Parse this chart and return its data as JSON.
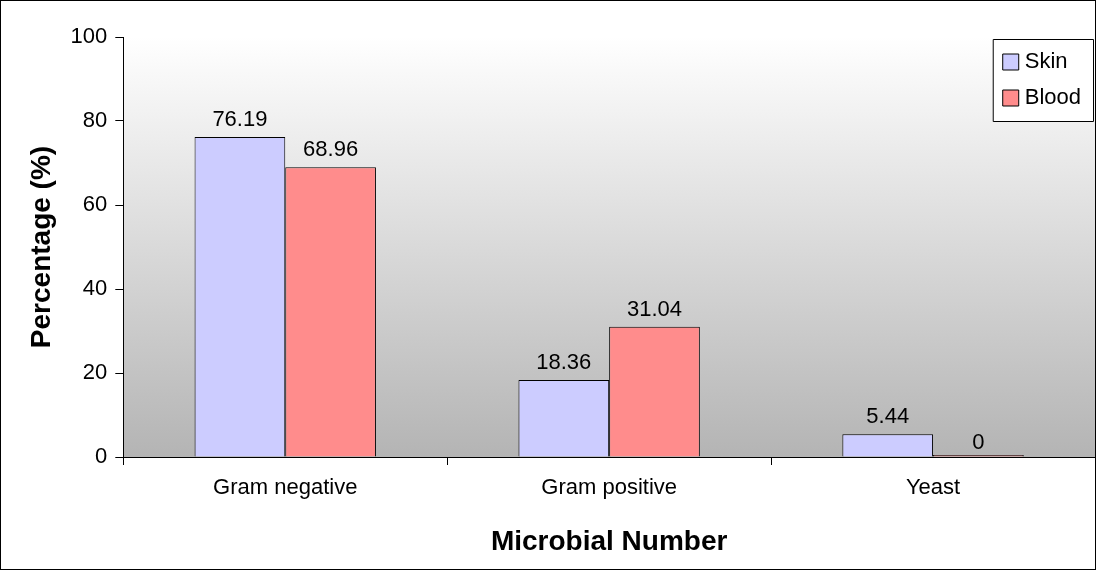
{
  "chart_data": {
    "type": "bar",
    "xlabel": "Microbial Number",
    "ylabel": "Percentage (%)",
    "categories": [
      "Gram negative",
      "Gram positive",
      "Yeast"
    ],
    "series": [
      {
        "name": "Skin",
        "color": "#ccccff",
        "values": [
          76.19,
          18.36,
          5.44
        ]
      },
      {
        "name": "Blood",
        "color": "#ff8c8c",
        "values": [
          68.96,
          31.04,
          0
        ]
      }
    ],
    "ylim": [
      0,
      100
    ],
    "yticks": [
      0,
      20,
      40,
      60,
      80,
      100
    ],
    "grid": false,
    "legend": "top right",
    "data_labels": true
  }
}
